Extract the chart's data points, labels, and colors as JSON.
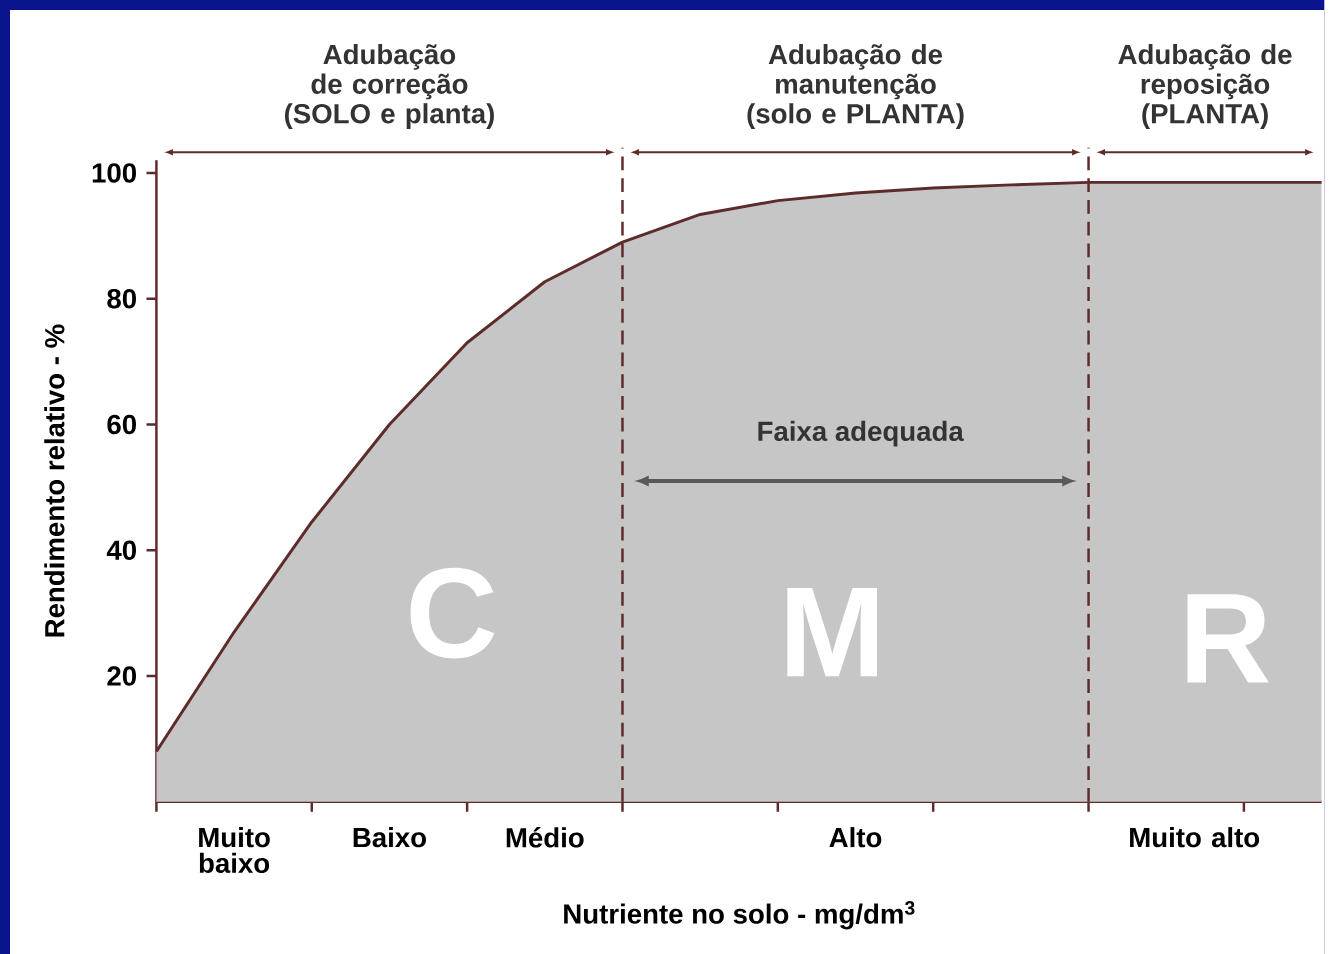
{
  "chart_data": {
    "type": "area",
    "xlabel": "Nutriente no solo - mg/dm$^{3}$",
    "ylabel": "Rendimento relativo - %",
    "categories": [
      null,
      null,
      null,
      null,
      null,
      null,
      null,
      null,
      null,
      null,
      null,
      null,
      null,
      null,
      null,
      null
    ],
    "series": [
      {
        "color": "#5e2b2b",
        "values": [
          8,
          27,
          44.5,
          60,
          73,
          82.7,
          89,
          93.4,
          95.6,
          96.8,
          97.6,
          98.1,
          98.5,
          98.5,
          98.5,
          98.5
        ]
      }
    ],
    "ylim": [
      0,
      102
    ],
    "yticks": [
      20,
      40,
      60,
      80,
      100
    ],
    "annotations": [
      "Adubação de correção (SOLO e planta)",
      "Adubação de manutenção (solo e PLANTA)",
      "Adubação de reposição (PLANTA)",
      "Faixa adequada",
      "C",
      "M",
      "R",
      "Muito baixo",
      "Baixo",
      "Médio",
      "Alto",
      "Muito alto"
    ],
    "grid": false
  }
}
